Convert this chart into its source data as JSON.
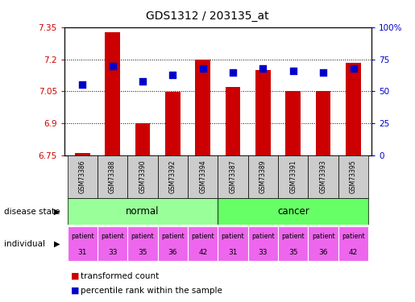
{
  "title": "GDS1312 / 203135_at",
  "samples": [
    "GSM73386",
    "GSM73388",
    "GSM73390",
    "GSM73392",
    "GSM73394",
    "GSM73387",
    "GSM73389",
    "GSM73391",
    "GSM73393",
    "GSM73395"
  ],
  "transformed_count": [
    6.76,
    7.325,
    6.9,
    7.047,
    7.2,
    7.07,
    7.15,
    7.05,
    7.05,
    7.185
  ],
  "percentile_rank": [
    55,
    70,
    58,
    63,
    68,
    65,
    68,
    66,
    65,
    68
  ],
  "ylim_left": [
    6.75,
    7.35
  ],
  "ylim_right": [
    0,
    100
  ],
  "yticks_left": [
    6.75,
    6.9,
    7.05,
    7.2,
    7.35
  ],
  "ytick_labels_left": [
    "6.75",
    "6.9",
    "7.05",
    "7.2",
    "7.35"
  ],
  "yticks_right": [
    0,
    25,
    50,
    75,
    100
  ],
  "ytick_labels_right": [
    "0",
    "25",
    "50",
    "75",
    "100%"
  ],
  "bar_color": "#cc0000",
  "dot_color": "#0000cc",
  "bar_bottom": 6.75,
  "normal_color": "#99ff99",
  "cancer_color": "#66ff66",
  "individual_color": "#ee66ee",
  "individual": [
    "patient\n31",
    "patient\n33",
    "patient\n35",
    "patient\n36",
    "patient\n42",
    "patient\n31",
    "patient\n33",
    "patient\n35",
    "patient\n36",
    "patient\n42"
  ],
  "disease_state": [
    "normal",
    "normal",
    "normal",
    "normal",
    "normal",
    "cancer",
    "cancer",
    "cancer",
    "cancer",
    "cancer"
  ],
  "legend_items": [
    "transformed count",
    "percentile rank within the sample"
  ],
  "legend_colors": [
    "#cc0000",
    "#0000cc"
  ],
  "left_axis_color": "#cc0000",
  "right_axis_color": "#0000cc",
  "sample_box_color": "#cccccc",
  "dot_size": 30,
  "bar_width": 0.5
}
